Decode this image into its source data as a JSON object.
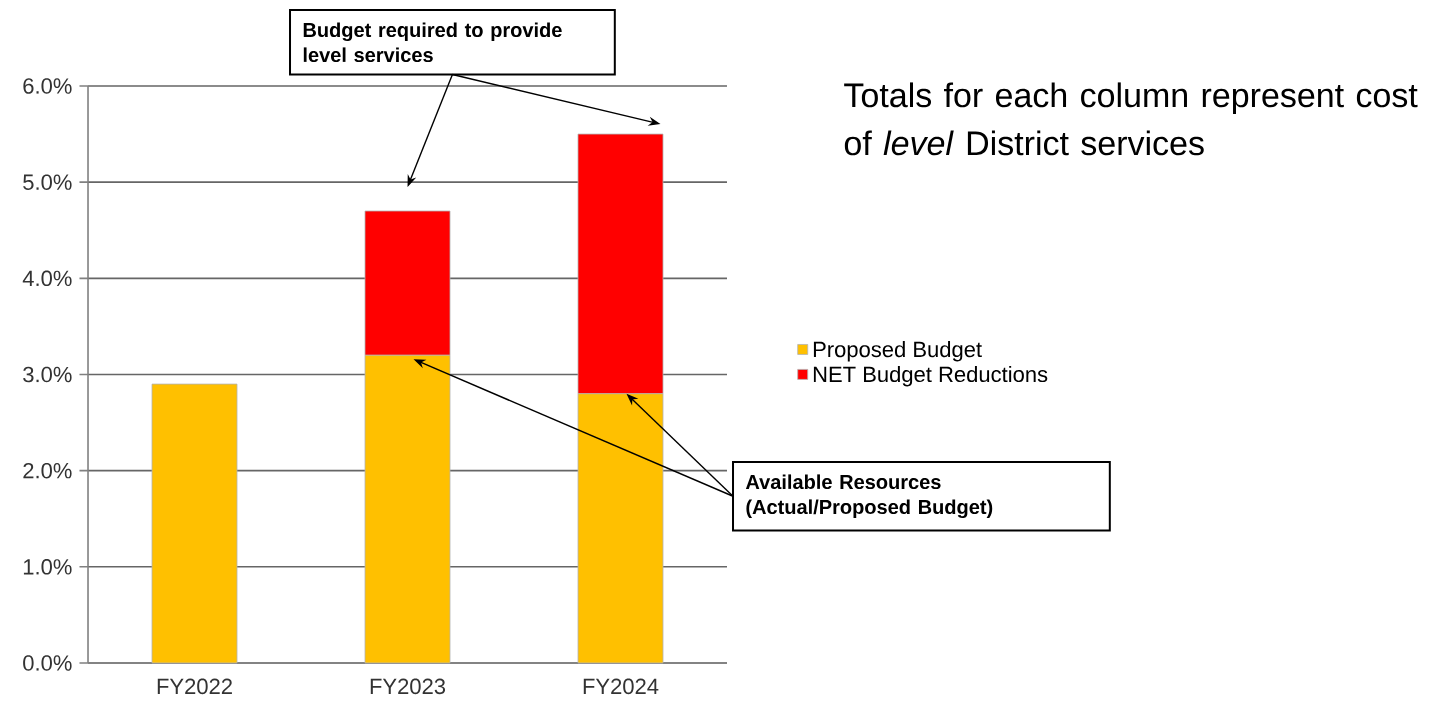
{
  "chart_data": {
    "type": "bar",
    "stacked": true,
    "categories": [
      "FY2022",
      "FY2023",
      "FY2024"
    ],
    "series": [
      {
        "name": "Proposed Budget",
        "color": "#ffc000",
        "values": [
          2.9,
          3.2,
          2.8
        ]
      },
      {
        "name": "NET Budget Reductions",
        "color": "#ff0000",
        "values": [
          null,
          1.5,
          2.7
        ]
      }
    ],
    "ylim": [
      0,
      6
    ],
    "yticks": [
      {
        "value": 0,
        "label": "0.0%"
      },
      {
        "value": 1,
        "label": "1.0%"
      },
      {
        "value": 2,
        "label": "2.0%"
      },
      {
        "value": 3,
        "label": "3.0%"
      },
      {
        "value": 4,
        "label": "4.0%"
      },
      {
        "value": 5,
        "label": "5.0%"
      },
      {
        "value": 6,
        "label": "6.0%"
      }
    ],
    "grid": "y",
    "legend": "right",
    "annotations": [
      "Budget required to provide level services",
      "Available Resources (Actual/Proposed Budget)",
      "Totals for each column represent cost of *level* District services"
    ]
  }
}
